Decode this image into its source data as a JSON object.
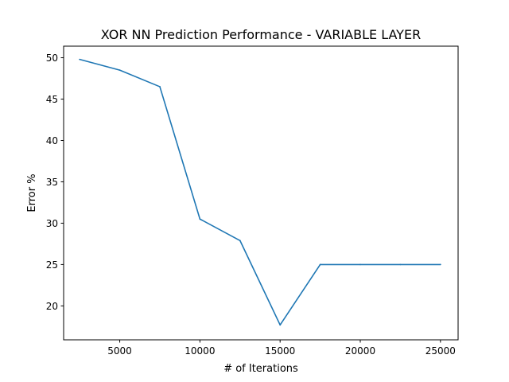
{
  "chart_data": {
    "type": "line",
    "title": "XOR NN Prediction Performance - VARIABLE LAYER",
    "xlabel": "# of Iterations",
    "ylabel": "Error %",
    "xlim": [
      1500,
      26100
    ],
    "ylim": [
      15.9,
      51.4
    ],
    "xticks": [
      5000,
      10000,
      15000,
      20000,
      25000
    ],
    "yticks": [
      20,
      25,
      30,
      35,
      40,
      45,
      50
    ],
    "grid": false,
    "legend": "none",
    "series": [
      {
        "color": "#1f77b4",
        "x": [
          2500,
          5000,
          7500,
          10000,
          12500,
          15000,
          17500,
          20000,
          22500,
          25000
        ],
        "y": [
          49.8,
          48.5,
          46.5,
          30.5,
          27.9,
          17.7,
          25.0,
          25.0,
          25.0,
          25.0
        ]
      }
    ]
  }
}
